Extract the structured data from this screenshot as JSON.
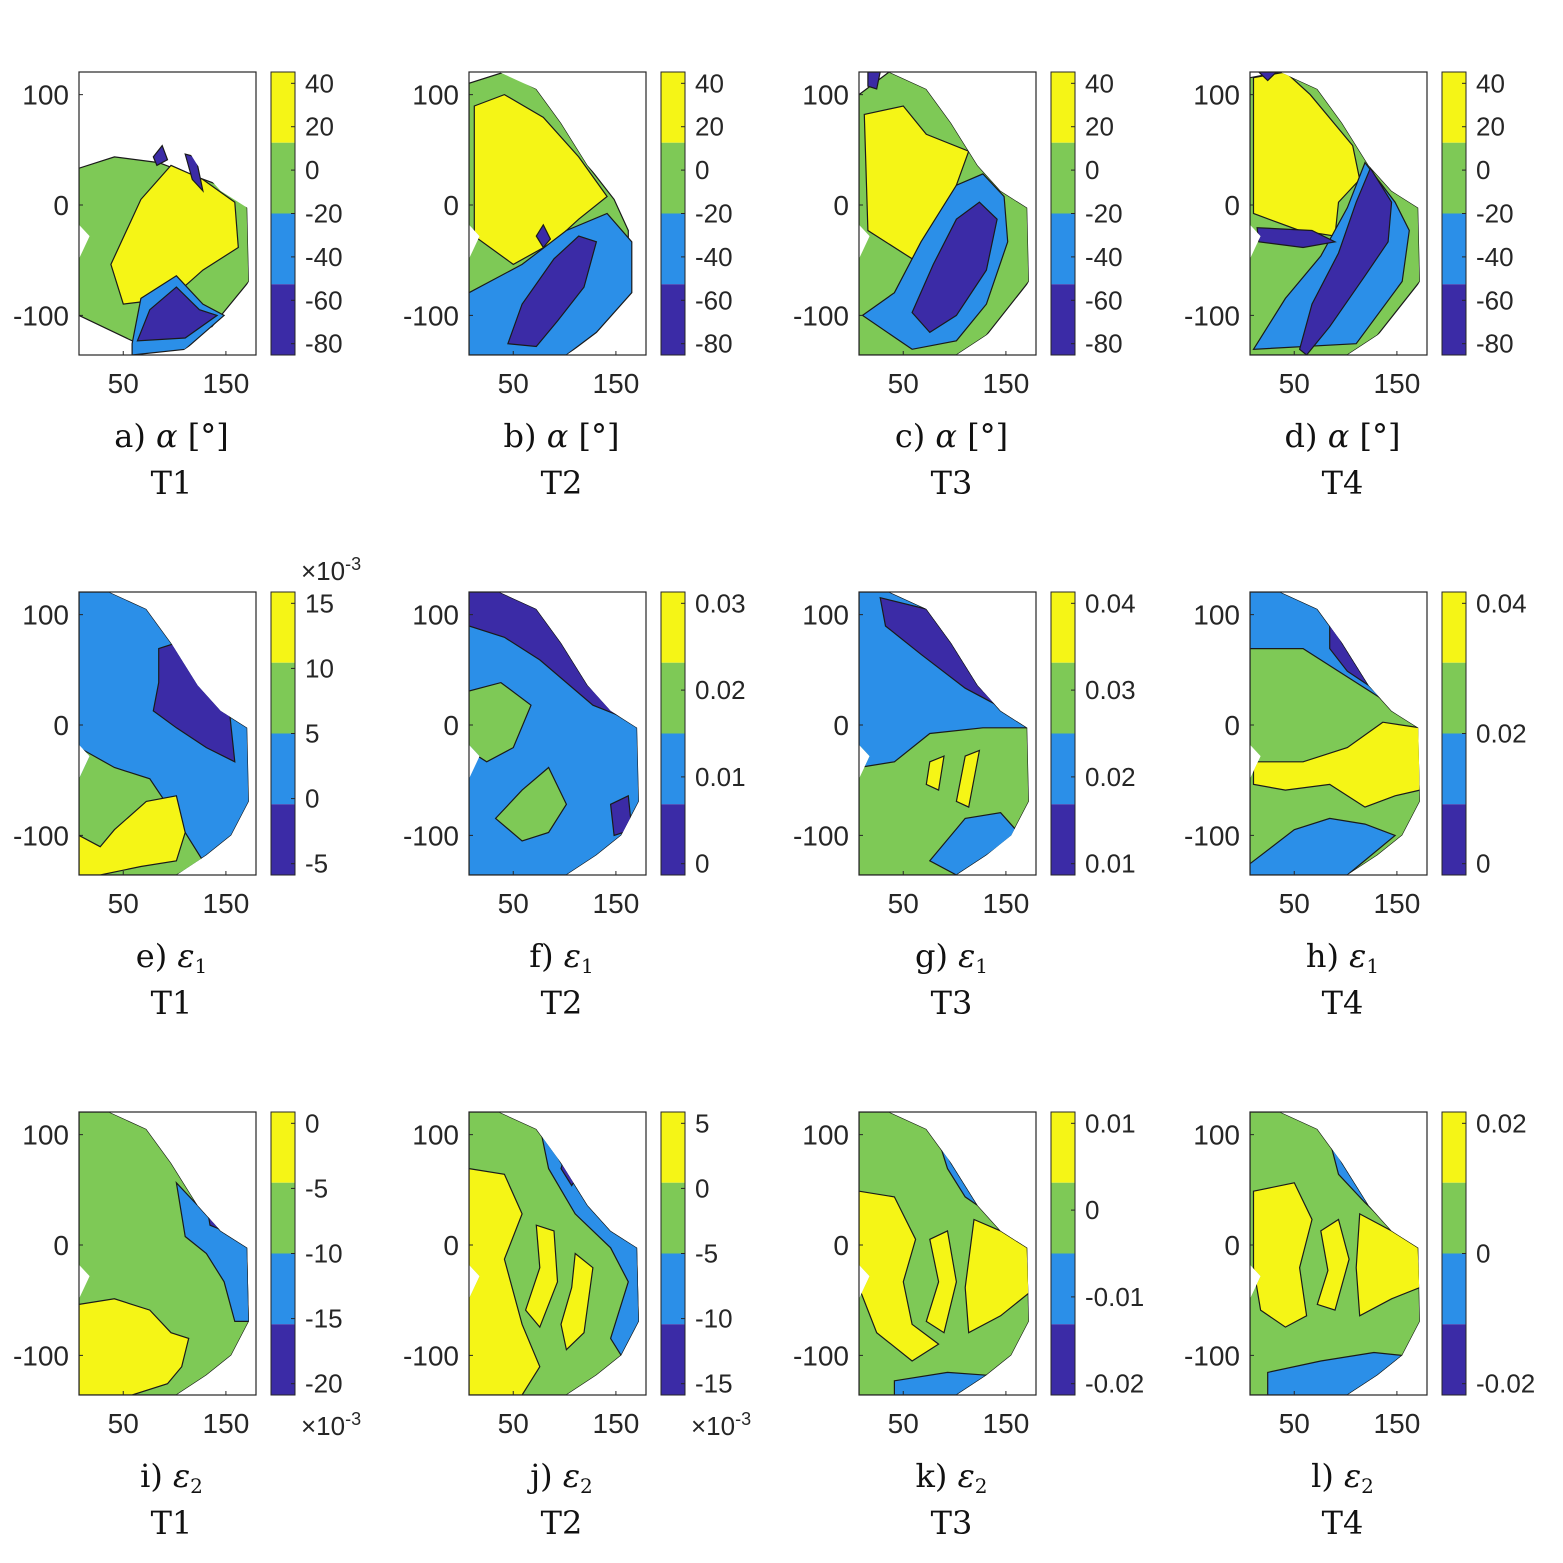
{
  "colors": {
    "level1": "#3b2ba6",
    "level2": "#2b8fe8",
    "level3": "#7ec956",
    "level4": "#f5f516",
    "contour": "#1a1a1a",
    "axis": "#262626"
  },
  "chart_data": [
    {
      "id": "a",
      "type": "contour",
      "letter": "a)",
      "symbol": "α",
      "subscript": "",
      "unit": "[°]",
      "subtitle": "T1",
      "xticks": [
        "50",
        "150"
      ],
      "yticks": [
        "100",
        "0",
        "-100"
      ],
      "colorbar": {
        "ticks": [
          "40",
          "20",
          "0",
          "-20",
          "-40",
          "-60",
          "-80"
        ],
        "multiplier": ""
      }
    },
    {
      "id": "b",
      "type": "contour",
      "letter": "b)",
      "symbol": "α",
      "subscript": "",
      "unit": "[°]",
      "subtitle": "T2",
      "xticks": [
        "50",
        "150"
      ],
      "yticks": [
        "100",
        "0",
        "-100"
      ],
      "colorbar": {
        "ticks": [
          "40",
          "20",
          "0",
          "-20",
          "-40",
          "-60",
          "-80"
        ],
        "multiplier": ""
      }
    },
    {
      "id": "c",
      "type": "contour",
      "letter": "c)",
      "symbol": "α",
      "subscript": "",
      "unit": "[°]",
      "subtitle": "T3",
      "xticks": [
        "50",
        "150"
      ],
      "yticks": [
        "100",
        "0",
        "-100"
      ],
      "colorbar": {
        "ticks": [
          "40",
          "20",
          "0",
          "-20",
          "-40",
          "-60",
          "-80"
        ],
        "multiplier": ""
      }
    },
    {
      "id": "d",
      "type": "contour",
      "letter": "d)",
      "symbol": "α",
      "subscript": "",
      "unit": "[°]",
      "subtitle": "T4",
      "xticks": [
        "50",
        "150"
      ],
      "yticks": [
        "100",
        "0",
        "-100"
      ],
      "colorbar": {
        "ticks": [
          "40",
          "20",
          "0",
          "-20",
          "-40",
          "-60",
          "-80"
        ],
        "multiplier": ""
      }
    },
    {
      "id": "e",
      "type": "contour",
      "letter": "e)",
      "symbol": "ε",
      "subscript": "1",
      "unit": "",
      "subtitle": "T1",
      "xticks": [
        "50",
        "150"
      ],
      "yticks": [
        "100",
        "0",
        "-100"
      ],
      "colorbar": {
        "ticks": [
          "15",
          "10",
          "5",
          "0",
          "-5"
        ],
        "multiplier": "×10",
        "multiplier_exp": "-3"
      }
    },
    {
      "id": "f",
      "type": "contour",
      "letter": "f)",
      "symbol": "ε",
      "subscript": "1",
      "unit": "",
      "subtitle": "T2",
      "xticks": [
        "50",
        "150"
      ],
      "yticks": [
        "100",
        "0",
        "-100"
      ],
      "colorbar": {
        "ticks": [
          "0.03",
          "0.02",
          "0.01",
          "0"
        ],
        "multiplier": ""
      }
    },
    {
      "id": "g",
      "type": "contour",
      "letter": "g)",
      "symbol": "ε",
      "subscript": "1",
      "unit": "",
      "subtitle": "T3",
      "xticks": [
        "50",
        "150"
      ],
      "yticks": [
        "100",
        "0",
        "-100"
      ],
      "colorbar": {
        "ticks": [
          "0.04",
          "0.03",
          "0.02",
          "0.01"
        ],
        "multiplier": ""
      }
    },
    {
      "id": "h",
      "type": "contour",
      "letter": "h)",
      "symbol": "ε",
      "subscript": "1",
      "unit": "",
      "subtitle": "T4",
      "xticks": [
        "50",
        "150"
      ],
      "yticks": [
        "100",
        "0",
        "-100"
      ],
      "colorbar": {
        "ticks": [
          "0.04",
          "0.02",
          "0"
        ],
        "multiplier": ""
      }
    },
    {
      "id": "i",
      "type": "contour",
      "letter": "i)",
      "symbol": "ε",
      "subscript": "2",
      "unit": "",
      "subtitle": "T1",
      "xticks": [
        "50",
        "150"
      ],
      "yticks": [
        "100",
        "0",
        "-100"
      ],
      "colorbar": {
        "ticks": [
          "0",
          "-5",
          "-10",
          "-15",
          "-20"
        ],
        "multiplier": "×10",
        "multiplier_exp": "-3"
      }
    },
    {
      "id": "j",
      "type": "contour",
      "letter": "j)",
      "symbol": "ε",
      "subscript": "2",
      "unit": "",
      "subtitle": "T2",
      "xticks": [
        "50",
        "150"
      ],
      "yticks": [
        "100",
        "0",
        "-100"
      ],
      "colorbar": {
        "ticks": [
          "5",
          "0",
          "-5",
          "-10",
          "-15"
        ],
        "multiplier": "×10",
        "multiplier_exp": "-3"
      }
    },
    {
      "id": "k",
      "type": "contour",
      "letter": "k)",
      "symbol": "ε",
      "subscript": "2",
      "unit": "",
      "subtitle": "T3",
      "xticks": [
        "50",
        "150"
      ],
      "yticks": [
        "100",
        "0",
        "-100"
      ],
      "colorbar": {
        "ticks": [
          "0.01",
          "0",
          "-0.01",
          "-0.02"
        ],
        "multiplier": ""
      }
    },
    {
      "id": "l",
      "type": "contour",
      "letter": "l)",
      "symbol": "ε",
      "subscript": "2",
      "unit": "",
      "subtitle": "T4",
      "xticks": [
        "50",
        "150"
      ],
      "yticks": [
        "100",
        "0",
        "-100"
      ],
      "colorbar": {
        "ticks": [
          "0.02",
          "0",
          "-0.02"
        ],
        "multiplier": ""
      }
    }
  ]
}
